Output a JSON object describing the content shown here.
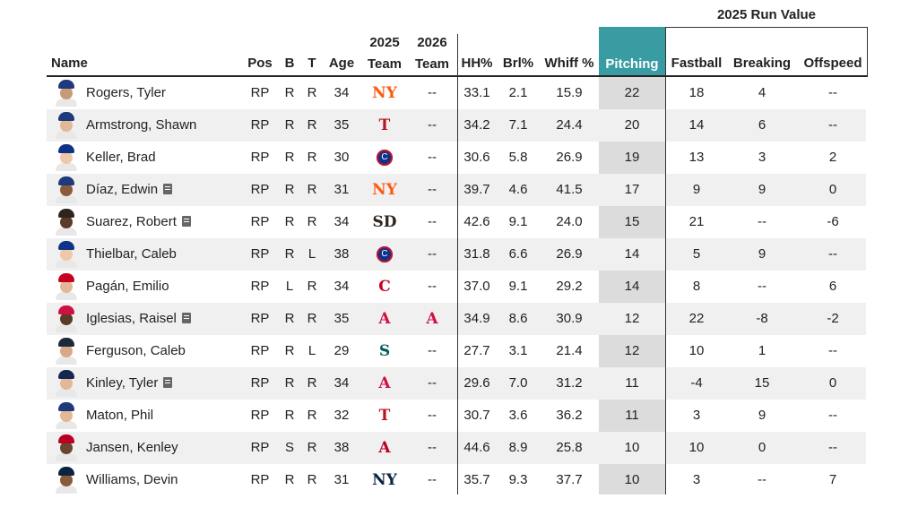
{
  "group_header": "2025 Run Value",
  "headers": {
    "name": "Name",
    "pos": "Pos",
    "b": "B",
    "t": "T",
    "age": "Age",
    "team2025_top": "2025",
    "team2025_bottom": "Team",
    "team2026_top": "2026",
    "team2026_bottom": "Team",
    "hh": "HH%",
    "brl": "Brl%",
    "whiff": "Whiff %",
    "pitching": "Pitching",
    "fastball": "Fastball",
    "breaking": "Breaking",
    "offspeed": "Offspeed"
  },
  "colors": {
    "accent": "#3a9ca3",
    "pitching_col": "#dcdcdc"
  },
  "rows": [
    {
      "name": "Rogers, Tyler",
      "note": "",
      "pos": "RP",
      "b": "R",
      "t": "R",
      "age": "34",
      "team2025": "NYM",
      "team2026": "--",
      "hh": "33.1",
      "brl": "2.1",
      "whiff": "15.9",
      "pitching": "22",
      "fastball": "18",
      "breaking": "4",
      "offspeed": "--"
    },
    {
      "name": "Armstrong, Shawn",
      "note": "",
      "pos": "RP",
      "b": "R",
      "t": "R",
      "age": "35",
      "team2025": "TEX",
      "team2026": "--",
      "hh": "34.2",
      "brl": "7.1",
      "whiff": "24.4",
      "pitching": "20",
      "fastball": "14",
      "breaking": "6",
      "offspeed": "--"
    },
    {
      "name": "Keller, Brad",
      "note": "",
      "pos": "RP",
      "b": "R",
      "t": "R",
      "age": "30",
      "team2025": "CHC",
      "team2026": "--",
      "hh": "30.6",
      "brl": "5.8",
      "whiff": "26.9",
      "pitching": "19",
      "fastball": "13",
      "breaking": "3",
      "offspeed": "2"
    },
    {
      "name": "Díaz, Edwin",
      "note": "note-icon",
      "pos": "RP",
      "b": "R",
      "t": "R",
      "age": "31",
      "team2025": "NYM",
      "team2026": "--",
      "hh": "39.7",
      "brl": "4.6",
      "whiff": "41.5",
      "pitching": "17",
      "fastball": "9",
      "breaking": "9",
      "offspeed": "0"
    },
    {
      "name": "Suarez, Robert",
      "note": "note-icon",
      "pos": "RP",
      "b": "R",
      "t": "R",
      "age": "34",
      "team2025": "SD",
      "team2026": "--",
      "hh": "42.6",
      "brl": "9.1",
      "whiff": "24.0",
      "pitching": "15",
      "fastball": "21",
      "breaking": "--",
      "offspeed": "-6"
    },
    {
      "name": "Thielbar, Caleb",
      "note": "",
      "pos": "RP",
      "b": "R",
      "t": "L",
      "age": "38",
      "team2025": "CHC",
      "team2026": "--",
      "hh": "31.8",
      "brl": "6.6",
      "whiff": "26.9",
      "pitching": "14",
      "fastball": "5",
      "breaking": "9",
      "offspeed": "--"
    },
    {
      "name": "Pagán, Emilio",
      "note": "",
      "pos": "RP",
      "b": "L",
      "t": "R",
      "age": "34",
      "team2025": "CIN",
      "team2026": "--",
      "hh": "37.0",
      "brl": "9.1",
      "whiff": "29.2",
      "pitching": "14",
      "fastball": "8",
      "breaking": "--",
      "offspeed": "6"
    },
    {
      "name": "Iglesias, Raisel",
      "note": "note-icon",
      "pos": "RP",
      "b": "R",
      "t": "R",
      "age": "35",
      "team2025": "ATL",
      "team2026": "ATL",
      "hh": "34.9",
      "brl": "8.6",
      "whiff": "30.9",
      "pitching": "12",
      "fastball": "22",
      "breaking": "-8",
      "offspeed": "-2"
    },
    {
      "name": "Ferguson, Caleb",
      "note": "",
      "pos": "RP",
      "b": "R",
      "t": "L",
      "age": "29",
      "team2025": "SEA",
      "team2026": "--",
      "hh": "27.7",
      "brl": "3.1",
      "whiff": "21.4",
      "pitching": "12",
      "fastball": "10",
      "breaking": "1",
      "offspeed": "--"
    },
    {
      "name": "Kinley, Tyler",
      "note": "note-icon",
      "pos": "RP",
      "b": "R",
      "t": "R",
      "age": "34",
      "team2025": "ATL",
      "team2026": "--",
      "hh": "29.6",
      "brl": "7.0",
      "whiff": "31.2",
      "pitching": "11",
      "fastball": "-4",
      "breaking": "15",
      "offspeed": "0"
    },
    {
      "name": "Maton, Phil",
      "note": "",
      "pos": "RP",
      "b": "R",
      "t": "R",
      "age": "32",
      "team2025": "TEX",
      "team2026": "--",
      "hh": "30.7",
      "brl": "3.6",
      "whiff": "36.2",
      "pitching": "11",
      "fastball": "3",
      "breaking": "9",
      "offspeed": "--"
    },
    {
      "name": "Jansen, Kenley",
      "note": "",
      "pos": "RP",
      "b": "S",
      "t": "R",
      "age": "38",
      "team2025": "LAA",
      "team2026": "--",
      "hh": "44.6",
      "brl": "8.9",
      "whiff": "25.8",
      "pitching": "10",
      "fastball": "10",
      "breaking": "0",
      "offspeed": "--"
    },
    {
      "name": "Williams, Devin",
      "note": "",
      "pos": "RP",
      "b": "R",
      "t": "R",
      "age": "31",
      "team2025": "NYY",
      "team2026": "--",
      "hh": "35.7",
      "brl": "9.3",
      "whiff": "37.7",
      "pitching": "10",
      "fastball": "3",
      "breaking": "--",
      "offspeed": "7"
    }
  ]
}
